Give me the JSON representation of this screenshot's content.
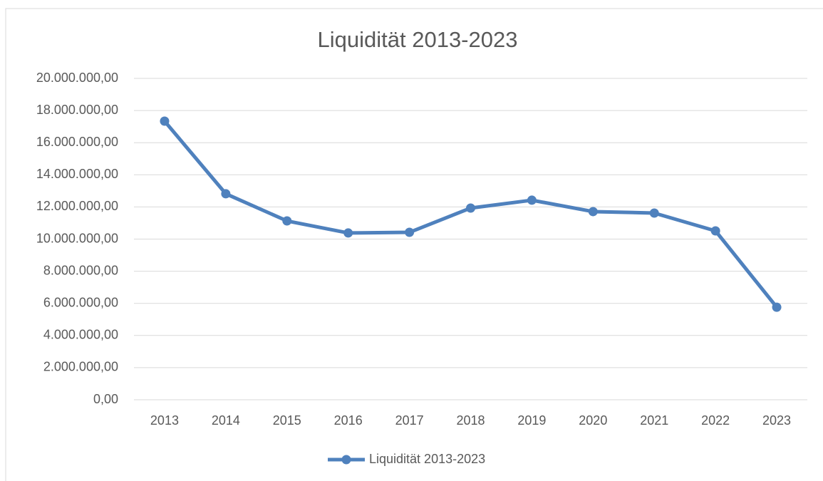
{
  "chart_data": {
    "type": "line",
    "title": "Liquidität 2013-2023",
    "categories": [
      "2013",
      "2014",
      "2015",
      "2016",
      "2017",
      "2018",
      "2019",
      "2020",
      "2021",
      "2022",
      "2023"
    ],
    "series": [
      {
        "name": "Liquidität 2013-2023",
        "color": "#4f81bd",
        "values": [
          17340000,
          12820000,
          11130000,
          10380000,
          10420000,
          11930000,
          12420000,
          11710000,
          11620000,
          10510000,
          5760000
        ]
      }
    ],
    "ylim": [
      0,
      20000000
    ],
    "yticks": [
      {
        "value": 0,
        "label": "0,00"
      },
      {
        "value": 2000000,
        "label": "2.000.000,00"
      },
      {
        "value": 4000000,
        "label": "4.000.000,00"
      },
      {
        "value": 6000000,
        "label": "6.000.000,00"
      },
      {
        "value": 8000000,
        "label": "8.000.000,00"
      },
      {
        "value": 10000000,
        "label": "10.000.000,00"
      },
      {
        "value": 12000000,
        "label": "12.000.000,00"
      },
      {
        "value": 14000000,
        "label": "14.000.000,00"
      },
      {
        "value": 16000000,
        "label": "16.000.000,00"
      },
      {
        "value": 18000000,
        "label": "18.000.000,00"
      },
      {
        "value": 20000000,
        "label": "20.000.000,00"
      }
    ],
    "grid": true,
    "legend": "bottom"
  }
}
